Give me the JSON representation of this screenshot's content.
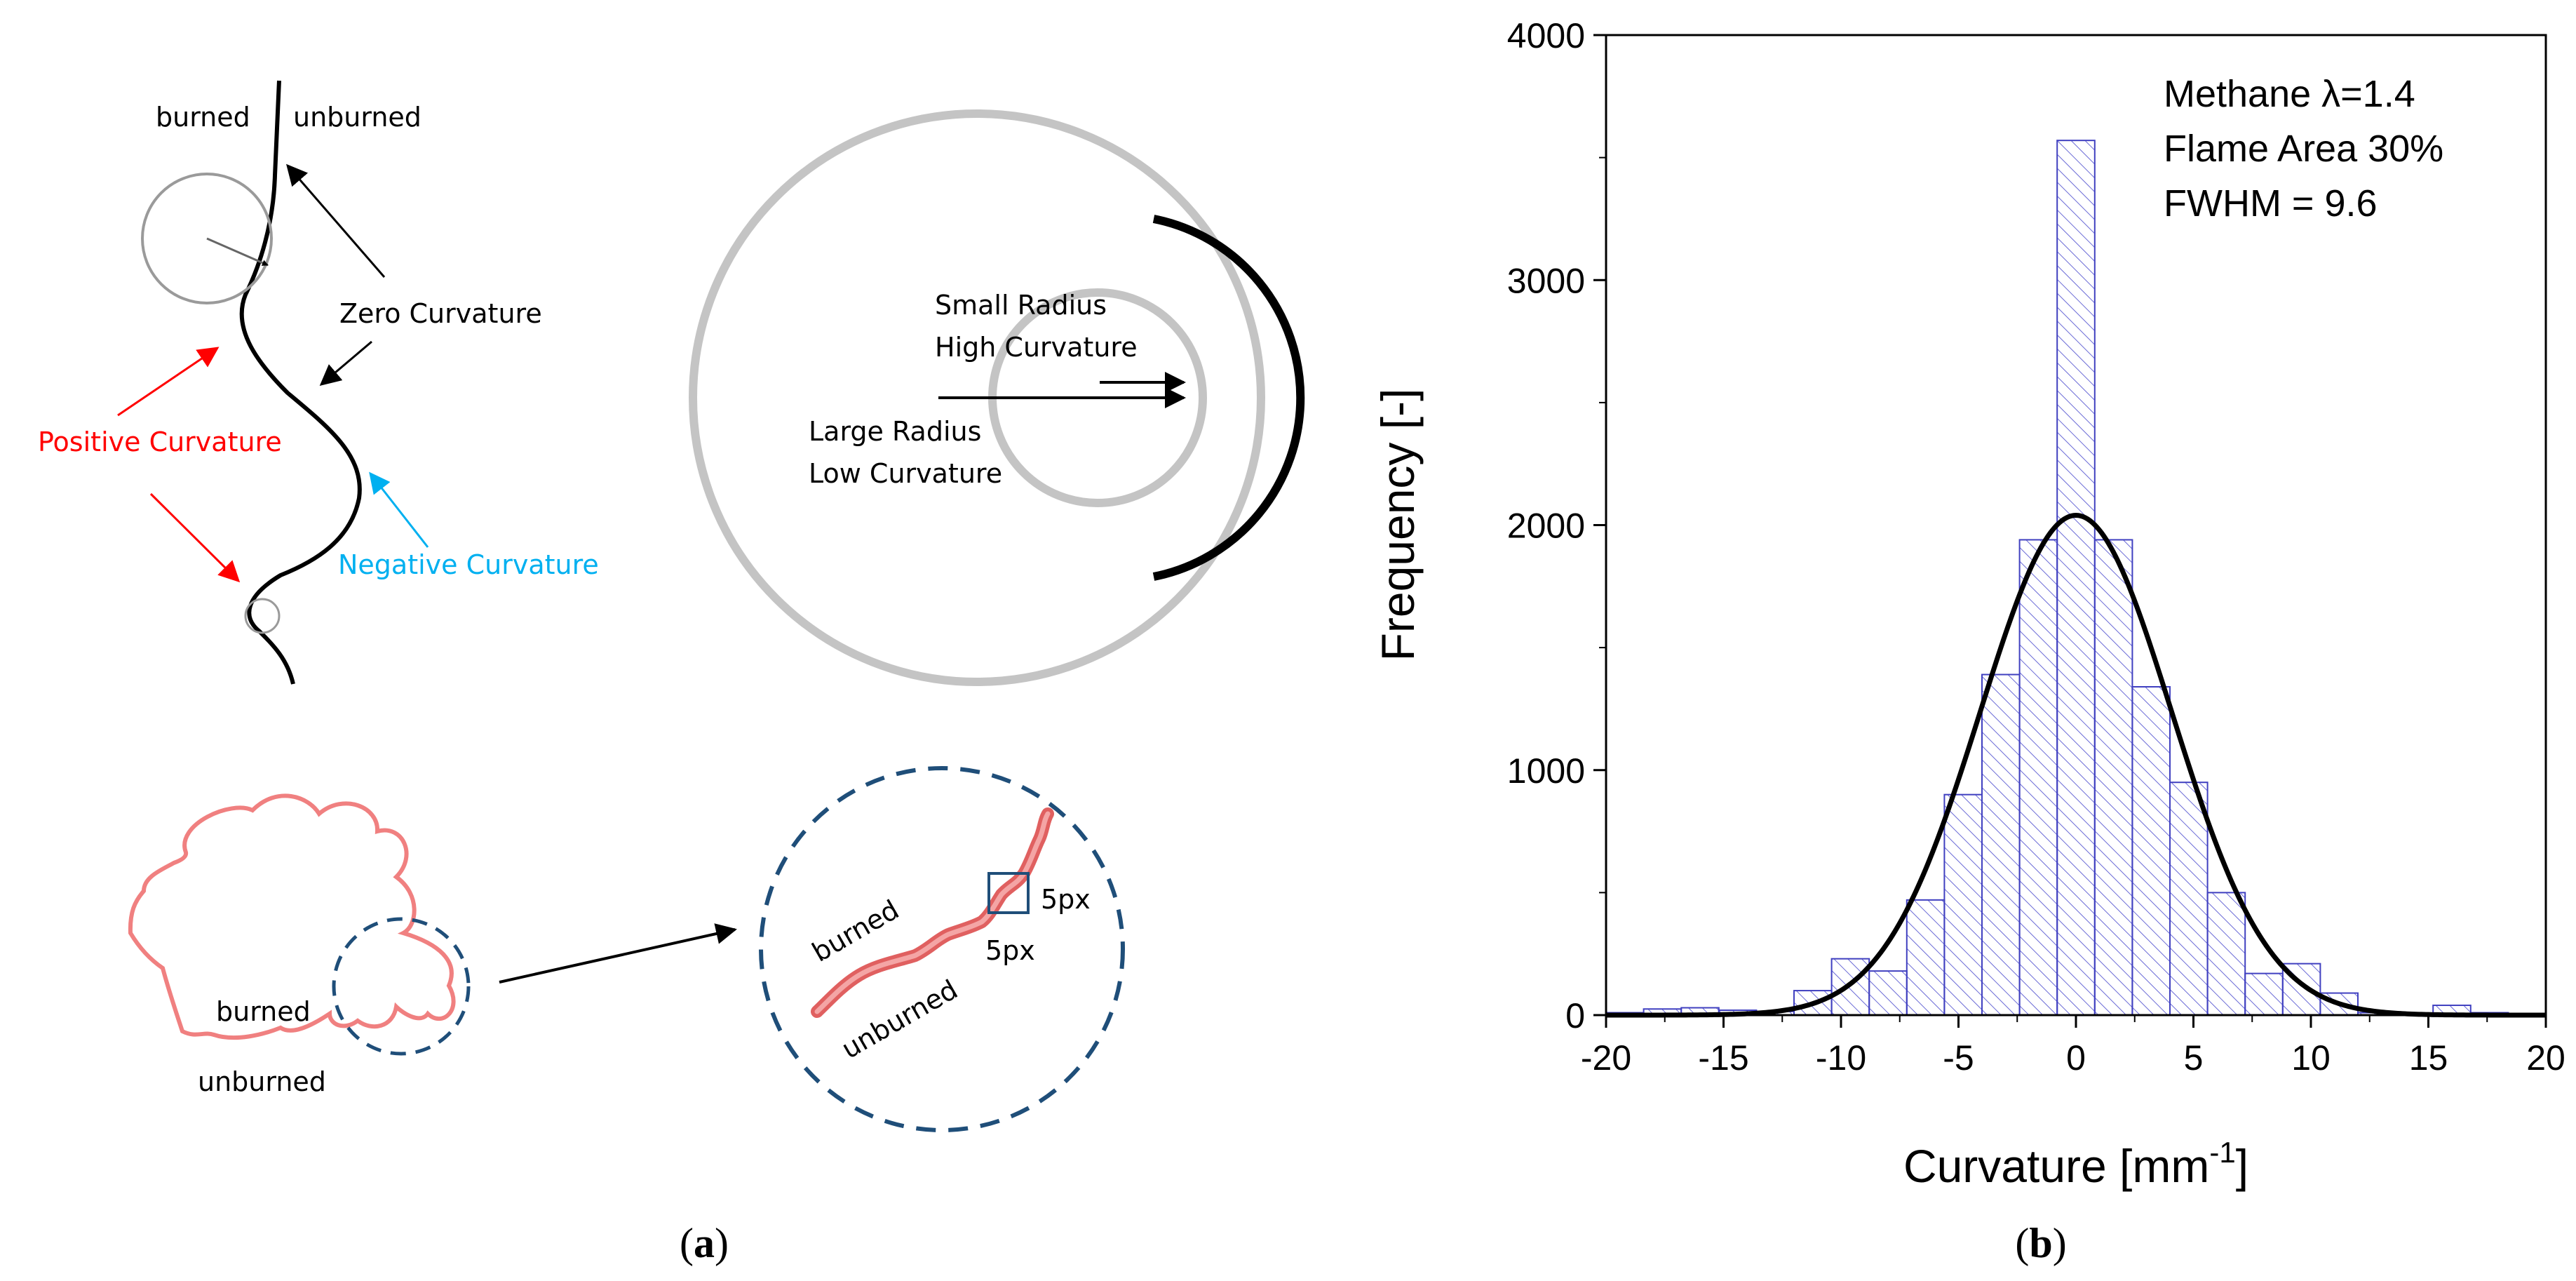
{
  "panel_a": {
    "label": "(a)",
    "label_letter": "a",
    "curve": {
      "burned": "burned",
      "unburned": "unburned",
      "zero_curvature": "Zero Curvature",
      "positive_curvature": "Positive Curvature",
      "negative_curvature": "Negative Curvature"
    },
    "circles": {
      "small_radius": "Small Radius",
      "high_curvature": "High Curvature",
      "large_radius": "Large Radius",
      "low_curvature": "Low Curvature"
    },
    "flame": {
      "burned": "burned",
      "unburned": "unburned"
    },
    "zoom": {
      "burned": "burned",
      "unburned": "unburned",
      "px_right": "5px",
      "px_bottom": "5px"
    },
    "colors": {
      "positive": "#ff0000",
      "negative": "#00b0f0",
      "flame": "#f08080",
      "dashed": "#1f4e79",
      "grey": "#bfbfbf"
    }
  },
  "panel_b": {
    "label": "(b)",
    "label_letter": "b",
    "colors": {
      "bar_stroke": "#4040c0",
      "hatch": "#6a6ad6"
    }
  },
  "chart_data": {
    "type": "bar",
    "title": "",
    "annotations": [
      "Methane  λ=1.4",
      "Flame Area 30%",
      "FWHM = 9.6"
    ],
    "xlabel": "Curvature [mm",
    "xlabel_sup": "-1",
    "xlabel_end": "]",
    "ylabel": "Frequency [-]",
    "xlim": [
      -20,
      20
    ],
    "ylim": [
      0,
      4000
    ],
    "xticks": [
      -20,
      -15,
      -10,
      -5,
      0,
      5,
      10,
      15,
      20
    ],
    "yticks": [
      0,
      1000,
      2000,
      3000,
      4000
    ],
    "bin_width": 1.6,
    "bins": [
      {
        "x0": -20,
        "x1": -18.4,
        "count": 10
      },
      {
        "x0": -18.4,
        "x1": -16.8,
        "count": 25
      },
      {
        "x0": -16.8,
        "x1": -15.2,
        "count": 30
      },
      {
        "x0": -15.2,
        "x1": -13.6,
        "count": 20
      },
      {
        "x0": -13.6,
        "x1": -12.0,
        "count": 15
      },
      {
        "x0": -12.0,
        "x1": -10.4,
        "count": 100
      },
      {
        "x0": -10.4,
        "x1": -8.8,
        "count": 230
      },
      {
        "x0": -8.8,
        "x1": -7.2,
        "count": 180
      },
      {
        "x0": -7.2,
        "x1": -5.6,
        "count": 470
      },
      {
        "x0": -5.6,
        "x1": -4.0,
        "count": 900
      },
      {
        "x0": -4.0,
        "x1": -2.4,
        "count": 1390
      },
      {
        "x0": -2.4,
        "x1": -0.8,
        "count": 1940
      },
      {
        "x0": -0.8,
        "x1": 0.8,
        "count": 3570
      },
      {
        "x0": 0.8,
        "x1": 2.4,
        "count": 1940
      },
      {
        "x0": 2.4,
        "x1": 4.0,
        "count": 1340
      },
      {
        "x0": 4.0,
        "x1": 5.6,
        "count": 950
      },
      {
        "x0": 5.6,
        "x1": 7.2,
        "count": 500
      },
      {
        "x0": 7.2,
        "x1": 8.8,
        "count": 170
      },
      {
        "x0": 8.8,
        "x1": 10.4,
        "count": 210
      },
      {
        "x0": 10.4,
        "x1": 12.0,
        "count": 90
      },
      {
        "x0": 12.0,
        "x1": 13.6,
        "count": 10
      },
      {
        "x0": 13.6,
        "x1": 15.2,
        "count": 5
      },
      {
        "x0": 15.2,
        "x1": 16.8,
        "count": 40
      },
      {
        "x0": 16.8,
        "x1": 18.4,
        "count": 10
      },
      {
        "x0": 18.4,
        "x1": 20.0,
        "count": 5
      }
    ],
    "series": [
      {
        "name": "Gaussian fit",
        "type": "line",
        "peak": 2040,
        "mean": 0,
        "fwhm": 9.6
      }
    ],
    "grid": false
  }
}
